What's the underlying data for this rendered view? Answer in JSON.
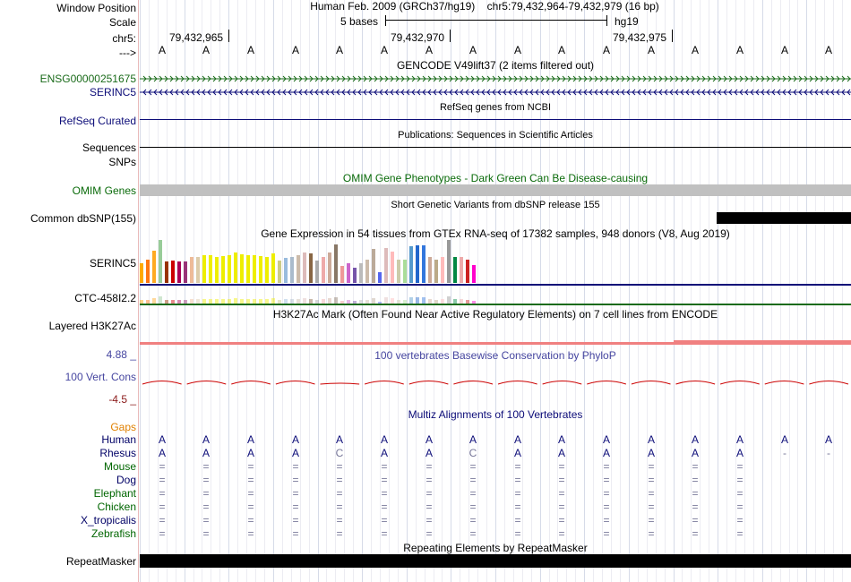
{
  "labels": {
    "window_position": "Window Position",
    "scale": "Scale",
    "chr": "chr5:",
    "arrow": "--->",
    "ensg": "ENSG00000251675",
    "serinc5": "SERINC5",
    "refseq": "RefSeq Curated",
    "sequences": "Sequences",
    "snps": "SNPs",
    "omim": "OMIM Genes",
    "dbsnp": "Common dbSNP(155)",
    "gtex_serinc5": "SERINC5",
    "ctc": "CTC-458I2.2",
    "h3k27ac": "Layered H3K27Ac",
    "phylop_max": "4.88 _",
    "vert_cons": "100 Vert. Cons",
    "phylop_min": "-4.5 _",
    "gaps": "Gaps",
    "repeatmasker": "RepeatMasker"
  },
  "header": {
    "assembly": "Human Feb. 2009 (GRCh37/hg19)",
    "position": "chr5:79,432,964-79,432,979 (16 bp)",
    "scale_text": "5 bases",
    "scale_db": "hg19",
    "coord1": "79,432,965",
    "coord2": "79,432,970",
    "coord3": "79,432,975"
  },
  "bases": [
    "A",
    "A",
    "A",
    "A",
    "A",
    "A",
    "A",
    "A",
    "A",
    "A",
    "A",
    "A",
    "A",
    "A",
    "A",
    "A"
  ],
  "tracks": {
    "gencode_title": "GENCODE V49lift37 (2 items filtered out)",
    "refseq_title": "RefSeq genes from NCBI",
    "publications_title": "Publications: Sequences in Scientific Articles",
    "omim_title": "OMIM Gene Phenotypes - Dark Green Can Be Disease-causing",
    "dbsnp_title": "Short Genetic Variants from dbSNP release 155",
    "gtex_title": "Gene Expression in 54 tissues from GTEx RNA-seq of 17382 samples, 948 donors (V8, Aug 2019)",
    "h3k27ac_title": "H3K27Ac Mark (Often Found Near Active Regulatory Elements) on 7 cell lines from ENCODE",
    "phylop_title": "100 vertebrates Basewise Conservation by PhyloP",
    "multiz_title": "Multiz Alignments of 100 Vertebrates",
    "repeat_title": "Repeating Elements by RepeatMasker"
  },
  "species": [
    {
      "name": "Human",
      "color": "#000066",
      "row": [
        "A",
        "A",
        "A",
        "A",
        "A",
        "A",
        "A",
        "A",
        "A",
        "A",
        "A",
        "A",
        "A",
        "A",
        "A",
        "A"
      ]
    },
    {
      "name": "Rhesus",
      "color": "#000066",
      "row": [
        "A",
        "A",
        "A",
        "A",
        "C",
        "A",
        "A",
        "C",
        "A",
        "A",
        "A",
        "A",
        "A",
        "A",
        "-",
        "-"
      ]
    },
    {
      "name": "Mouse",
      "color": "#006600",
      "row": [
        "=",
        "=",
        "=",
        "=",
        "=",
        "=",
        "=",
        "=",
        "=",
        "=",
        "=",
        "=",
        "=",
        "=",
        "",
        ""
      ]
    },
    {
      "name": "Dog",
      "color": "#000066",
      "row": [
        "=",
        "=",
        "=",
        "=",
        "=",
        "=",
        "=",
        "=",
        "=",
        "=",
        "=",
        "=",
        "=",
        "=",
        "",
        ""
      ]
    },
    {
      "name": "Elephant",
      "color": "#006600",
      "row": [
        "=",
        "=",
        "=",
        "=",
        "=",
        "=",
        "=",
        "=",
        "=",
        "=",
        "=",
        "=",
        "=",
        "=",
        "",
        ""
      ]
    },
    {
      "name": "Chicken",
      "color": "#006600",
      "row": [
        "=",
        "=",
        "=",
        "=",
        "=",
        "=",
        "=",
        "=",
        "=",
        "=",
        "=",
        "=",
        "=",
        "=",
        "",
        ""
      ]
    },
    {
      "name": "X_tropicalis",
      "color": "#000066",
      "row": [
        "=",
        "=",
        "=",
        "=",
        "=",
        "=",
        "=",
        "=",
        "=",
        "=",
        "=",
        "=",
        "=",
        "=",
        "",
        ""
      ]
    },
    {
      "name": "Zebrafish",
      "color": "#006600",
      "row": [
        "=",
        "=",
        "=",
        "=",
        "=",
        "=",
        "=",
        "=",
        "=",
        "=",
        "=",
        "=",
        "=",
        "=",
        "",
        ""
      ]
    }
  ],
  "gtex_bars": [
    {
      "h": 0.45,
      "c": "#FFAA00"
    },
    {
      "h": 0.55,
      "c": "#FF7711"
    },
    {
      "h": 0.75,
      "c": "#FFAA22"
    },
    {
      "h": 1.0,
      "c": "#99CC99"
    },
    {
      "h": 0.5,
      "c": "#993300"
    },
    {
      "h": 0.52,
      "c": "#CC0000"
    },
    {
      "h": 0.5,
      "c": "#AA0055"
    },
    {
      "h": 0.5,
      "c": "#993377"
    },
    {
      "h": 0.6,
      "c": "#EEBB99"
    },
    {
      "h": 0.6,
      "c": "#DDCCAA"
    },
    {
      "h": 0.64,
      "c": "#EEEE00"
    },
    {
      "h": 0.64,
      "c": "#EEEE00"
    },
    {
      "h": 0.6,
      "c": "#EEEE00"
    },
    {
      "h": 0.62,
      "c": "#EEEE00"
    },
    {
      "h": 0.64,
      "c": "#EEEE00"
    },
    {
      "h": 0.7,
      "c": "#EEEE00"
    },
    {
      "h": 0.67,
      "c": "#EEEE00"
    },
    {
      "h": 0.64,
      "c": "#EEEE00"
    },
    {
      "h": 0.64,
      "c": "#EEEE00"
    },
    {
      "h": 0.62,
      "c": "#EEEE00"
    },
    {
      "h": 0.6,
      "c": "#EEEE00"
    },
    {
      "h": 0.69,
      "c": "#EEEE00"
    },
    {
      "h": 0.52,
      "c": "#CCCC88"
    },
    {
      "h": 0.58,
      "c": "#99BBDD"
    },
    {
      "h": 0.6,
      "c": "#AABBCC"
    },
    {
      "h": 0.64,
      "c": "#CCBBAA"
    },
    {
      "h": 0.7,
      "c": "#DDBBBB"
    },
    {
      "h": 0.68,
      "c": "#886644"
    },
    {
      "h": 0.52,
      "c": "#AAAAAA"
    },
    {
      "h": 0.6,
      "c": "#EEAAAA"
    },
    {
      "h": 0.7,
      "c": "#CCAA99"
    },
    {
      "h": 0.9,
      "c": "#887766"
    },
    {
      "h": 0.4,
      "c": "#EE9999"
    },
    {
      "h": 0.45,
      "c": "#CC66CC"
    },
    {
      "h": 0.35,
      "c": "#7755AA"
    },
    {
      "h": 0.45,
      "c": "#BBBBBB"
    },
    {
      "h": 0.55,
      "c": "#CCBBAA"
    },
    {
      "h": 0.8,
      "c": "#BBAA99"
    },
    {
      "h": 0.25,
      "c": "#5566EE"
    },
    {
      "h": 0.82,
      "c": "#DDBBBB"
    },
    {
      "h": 0.72,
      "c": "#FFBBBB"
    },
    {
      "h": 0.55,
      "c": "#CCCCAA"
    },
    {
      "h": 0.55,
      "c": "#AADD99"
    },
    {
      "h": 0.85,
      "c": "#5599CC"
    },
    {
      "h": 0.88,
      "c": "#2266CC"
    },
    {
      "h": 0.88,
      "c": "#3377DD"
    },
    {
      "h": 0.6,
      "c": "#CCAA99"
    },
    {
      "h": 0.55,
      "c": "#BBAA88"
    },
    {
      "h": 0.6,
      "c": "#FFBBBB"
    },
    {
      "h": 1.0,
      "c": "#999999"
    },
    {
      "h": 0.6,
      "c": "#008844"
    },
    {
      "h": 0.6,
      "c": "#EEAAAA"
    },
    {
      "h": 0.55,
      "c": "#CC2222"
    },
    {
      "h": 0.42,
      "c": "#FF00CC"
    }
  ],
  "colors": {
    "ensg": "#1a6b1a",
    "serinc5": "#0c0c78",
    "navy": "#0c0c78",
    "omim_green": "#0a6b0a",
    "omim_bar": "#c0c0c0",
    "h3k27ac": "#f08080",
    "phylop": "#cc0000",
    "conserv_label": "#4646a0",
    "phylop_min_color": "#8b1a1a",
    "gaps": "#e08000"
  }
}
